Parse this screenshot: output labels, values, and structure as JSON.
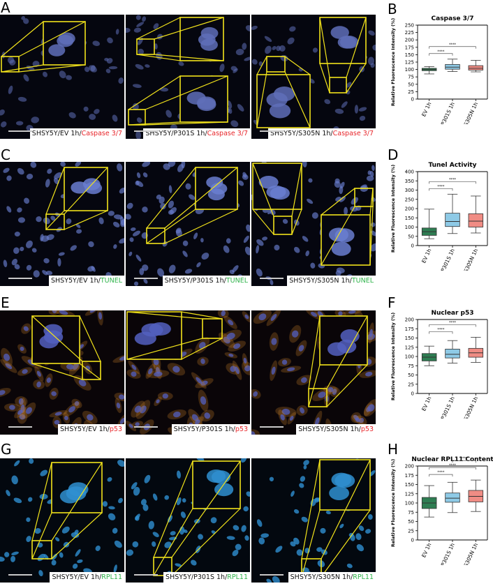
{
  "panels": [
    {
      "letter": "A",
      "captions": [
        {
          "prefix": "SHSY5Y/EV 1h/",
          "stain": "Caspase 3/7"
        },
        {
          "prefix": "SHSY5Y/P301S 1h/",
          "stain": "Caspase 3/7"
        },
        {
          "prefix": "SHSY5Y/S305N 1h/",
          "stain": "Caspase 3/7"
        }
      ]
    },
    {
      "letter": "C",
      "captions": [
        {
          "prefix": "SHSY5Y/EV 1h/",
          "stain": "TUNEL"
        },
        {
          "prefix": "SHSY5Y/P301S 1h/",
          "stain": "TUNEL"
        },
        {
          "prefix": "SHSY5Y/S305N 1h/",
          "stain": "TUNEL"
        }
      ]
    },
    {
      "letter": "E",
      "captions": [
        {
          "prefix": "SHSY5Y/EV 1h/",
          "stain": "p53"
        },
        {
          "prefix": "SHSY5Y/P301S 1h/",
          "stain": "p53"
        },
        {
          "prefix": "SHSY5Y/S305N 1h/",
          "stain": "p53"
        }
      ]
    },
    {
      "letter": "G",
      "captions": [
        {
          "prefix": "SHSY5Y/EV 1h/",
          "stain": "RPL11"
        },
        {
          "prefix": "SHSY5Y/P301S 1h/",
          "stain": "RPL11"
        },
        {
          "prefix": "SHSY5Y/S305N 1h/",
          "stain": "RPL11"
        }
      ]
    }
  ],
  "colors": {
    "red_stain": "#e8252a",
    "green_stain": "#2eb34a",
    "ev": "#2e7d52",
    "p301s": "#8ecae6",
    "s305n": "#f08c84",
    "zoom_frame": "#f2e31b"
  },
  "chart_data": [
    {
      "letter": "B",
      "type": "box",
      "title": "Caspase 3/7",
      "ylabel": "Relative Fluorescence Intensity (%)",
      "categories": [
        "EV 1h",
        "P301S 1h",
        "S305N 1h"
      ],
      "ylim": [
        0,
        250
      ],
      "yticks": [
        0,
        25,
        50,
        75,
        100,
        125,
        150,
        175,
        200,
        225,
        250
      ],
      "boxes": [
        {
          "min": 85,
          "q1": 96,
          "median": 100,
          "q3": 104,
          "max": 110
        },
        {
          "min": 93,
          "q1": 101,
          "median": 108,
          "q3": 117,
          "max": 135
        },
        {
          "min": 92,
          "q1": 98,
          "median": 104,
          "q3": 113,
          "max": 131
        }
      ],
      "significance": [
        {
          "from": 0,
          "to": 1,
          "label": "****"
        },
        {
          "from": 0,
          "to": 2,
          "label": "****"
        }
      ]
    },
    {
      "letter": "D",
      "type": "box",
      "title": "Tunel Activity",
      "ylabel": "Relative Fluorescence Intensity (%)",
      "categories": [
        "EV 1h",
        "P301S 1h",
        "S305N 1h"
      ],
      "ylim": [
        0,
        400
      ],
      "yticks": [
        0,
        50,
        100,
        150,
        200,
        250,
        300,
        350,
        400
      ],
      "boxes": [
        {
          "min": 37,
          "q1": 55,
          "median": 75,
          "q3": 95,
          "max": 197
        },
        {
          "min": 65,
          "q1": 103,
          "median": 130,
          "q3": 175,
          "max": 278
        },
        {
          "min": 68,
          "q1": 100,
          "median": 132,
          "q3": 172,
          "max": 268
        }
      ],
      "significance": [
        {
          "from": 0,
          "to": 1,
          "label": "****"
        },
        {
          "from": 0,
          "to": 2,
          "label": "****"
        }
      ]
    },
    {
      "letter": "F",
      "type": "box",
      "title": "Nuclear p53",
      "ylabel": "Relative Fluorescence Intensity (%)",
      "categories": [
        "EV 1h",
        "P301S 1h",
        "S305N 1h"
      ],
      "ylim": [
        0,
        200
      ],
      "yticks": [
        0,
        25,
        50,
        75,
        100,
        125,
        150,
        175,
        200
      ],
      "boxes": [
        {
          "min": 75,
          "q1": 88,
          "median": 98,
          "q3": 108,
          "max": 128
        },
        {
          "min": 82,
          "q1": 96,
          "median": 106,
          "q3": 120,
          "max": 143
        },
        {
          "min": 84,
          "q1": 98,
          "median": 110,
          "q3": 122,
          "max": 152
        }
      ],
      "significance": [
        {
          "from": 0,
          "to": 1,
          "label": "****"
        },
        {
          "from": 0,
          "to": 2,
          "label": "****"
        }
      ]
    },
    {
      "letter": "H",
      "type": "box",
      "title": "Nuclear RPL11 Content",
      "ylabel": "Relative Fluorescence Intensity (%)",
      "categories": [
        "EV 1h",
        "P301S 1h",
        "S305N 1h"
      ],
      "ylim": [
        0,
        200
      ],
      "yticks": [
        0,
        25,
        50,
        75,
        100,
        125,
        150,
        175,
        200
      ],
      "boxes": [
        {
          "min": 62,
          "q1": 85,
          "median": 100,
          "q3": 115,
          "max": 147
        },
        {
          "min": 74,
          "q1": 102,
          "median": 113,
          "q3": 127,
          "max": 156
        },
        {
          "min": 77,
          "q1": 103,
          "median": 118,
          "q3": 134,
          "max": 162
        }
      ],
      "significance": [
        {
          "from": 0,
          "to": 1,
          "label": "****"
        },
        {
          "from": 0,
          "to": 2,
          "label": "****"
        },
        {
          "from": 1,
          "to": 2,
          "label": "****"
        }
      ]
    }
  ]
}
